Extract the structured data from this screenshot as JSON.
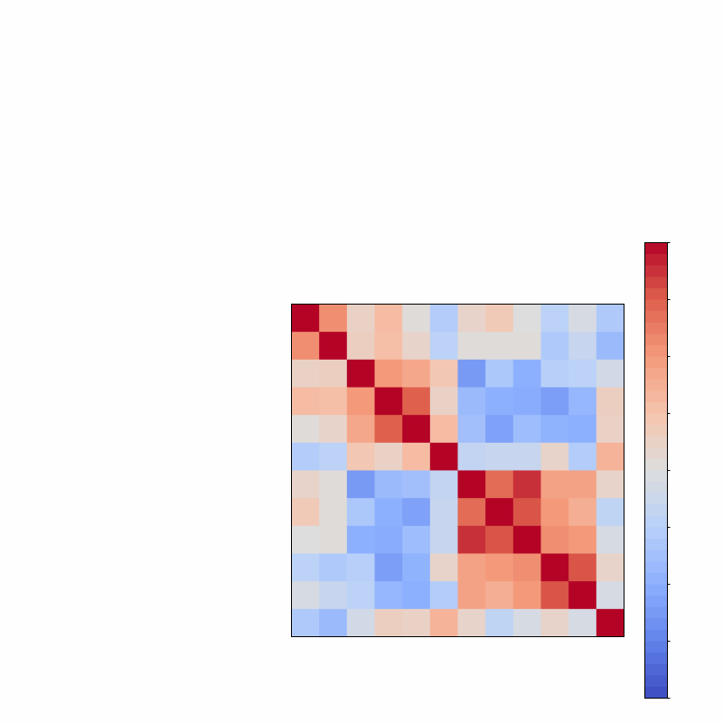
{
  "chart_data": {
    "type": "heatmap",
    "title": "",
    "xlabel": "",
    "ylabel": "",
    "x_tick_labels": [],
    "y_tick_labels": [],
    "matrix": [
      [
        1.0,
        0.55,
        0.12,
        0.3,
        0.02,
        -0.28,
        0.1,
        0.2,
        0.0,
        -0.22,
        -0.05,
        -0.3
      ],
      [
        0.55,
        1.0,
        0.15,
        0.28,
        0.1,
        -0.22,
        0.02,
        0.02,
        0.02,
        -0.3,
        -0.15,
        -0.42
      ],
      [
        0.12,
        0.15,
        1.0,
        0.5,
        0.42,
        0.22,
        -0.62,
        -0.32,
        -0.5,
        -0.25,
        -0.22,
        -0.08
      ],
      [
        0.3,
        0.28,
        0.5,
        1.0,
        0.75,
        0.12,
        -0.42,
        -0.5,
        -0.52,
        -0.6,
        -0.45,
        0.15
      ],
      [
        0.02,
        0.1,
        0.42,
        0.75,
        1.0,
        0.3,
        -0.38,
        -0.58,
        -0.4,
        -0.48,
        -0.5,
        0.12
      ],
      [
        -0.28,
        -0.22,
        0.22,
        0.12,
        0.3,
        1.0,
        -0.18,
        -0.15,
        -0.15,
        0.1,
        -0.28,
        0.35
      ],
      [
        0.1,
        0.02,
        -0.62,
        -0.42,
        -0.38,
        -0.18,
        1.0,
        0.7,
        0.88,
        0.45,
        0.45,
        0.1
      ],
      [
        0.2,
        0.02,
        -0.32,
        -0.5,
        -0.58,
        -0.15,
        0.7,
        1.0,
        0.78,
        0.5,
        0.38,
        -0.2
      ],
      [
        0.0,
        0.02,
        -0.5,
        -0.52,
        -0.4,
        -0.15,
        0.88,
        0.78,
        1.0,
        0.55,
        0.5,
        -0.05
      ],
      [
        -0.22,
        -0.3,
        -0.25,
        -0.6,
        -0.48,
        0.1,
        0.45,
        0.5,
        0.55,
        1.0,
        0.78,
        0.1
      ],
      [
        -0.05,
        -0.15,
        -0.22,
        -0.45,
        -0.5,
        -0.28,
        0.45,
        0.38,
        0.5,
        0.78,
        1.0,
        -0.05
      ],
      [
        -0.3,
        -0.42,
        -0.08,
        0.15,
        0.12,
        0.35,
        0.1,
        -0.2,
        -0.05,
        0.1,
        -0.05,
        1.0
      ]
    ],
    "colormap": "coolwarm",
    "value_range": [
      -1,
      1
    ],
    "colorbar": {
      "levels": 40,
      "tick_labels": [],
      "placement": "right"
    },
    "colors": {
      "low": "#3b4cc0",
      "mid": "#dddddd",
      "high": "#b40426"
    },
    "grid": false,
    "legend": "none"
  }
}
